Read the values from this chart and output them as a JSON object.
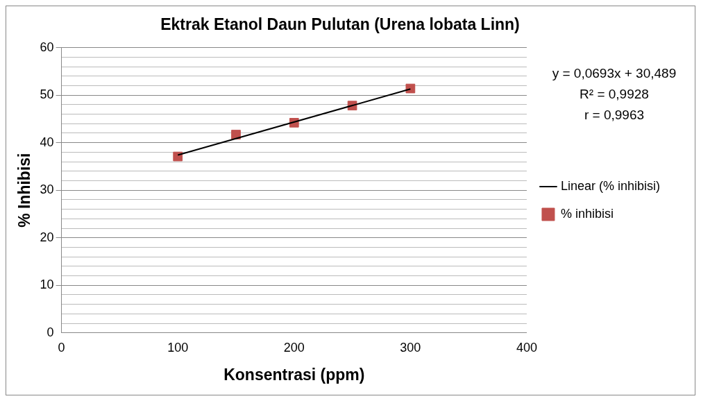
{
  "chart_data": {
    "type": "scatter",
    "title": "Ektrak Etanol Daun Pulutan (Urena lobata Linn)",
    "xlabel": "Konsentrasi (ppm)",
    "ylabel": "% Inhibisi",
    "x": [
      100,
      150,
      200,
      250,
      300
    ],
    "series": [
      {
        "name": "% inhibisi",
        "type": "scatter",
        "color": "#c0504d",
        "values": [
          37.1,
          41.7,
          44.2,
          47.8,
          51.4
        ],
        "marker": "square"
      },
      {
        "name": "Linear (% inhibisi)",
        "type": "line",
        "color": "#000000",
        "x": [
          100,
          300
        ],
        "values": [
          37.4,
          51.3
        ],
        "marker": "none",
        "line_style": "solid"
      }
    ],
    "annotations": [
      "y = 0,0693x + 30,489",
      "R² = 0,9928",
      "r = 0,9963"
    ],
    "xlim": [
      0,
      400
    ],
    "xticks": [
      0,
      100,
      200,
      300,
      400
    ],
    "ylim": [
      0,
      60
    ],
    "yticks": [
      0,
      {
        "value": 2,
        "label": null
      },
      {
        "value": 4,
        "label": null
      },
      {
        "value": 6,
        "label": null
      },
      {
        "value": 8,
        "label": null
      },
      10,
      {
        "value": 12,
        "label": null
      },
      {
        "value": 14,
        "label": null
      },
      {
        "value": 16,
        "label": null
      },
      {
        "value": 18,
        "label": null
      },
      20,
      {
        "value": 22,
        "label": null
      },
      {
        "value": 24,
        "label": null
      },
      {
        "value": 26,
        "label": null
      },
      {
        "value": 28,
        "label": null
      },
      30,
      {
        "value": 32,
        "label": null
      },
      {
        "value": 34,
        "label": null
      },
      {
        "value": 36,
        "label": null
      },
      {
        "value": 38,
        "label": null
      },
      40,
      {
        "value": 42,
        "label": null
      },
      {
        "value": 44,
        "label": null
      },
      {
        "value": 46,
        "label": null
      },
      {
        "value": 48,
        "label": null
      },
      50,
      {
        "value": 52,
        "label": null
      },
      {
        "value": 54,
        "label": null
      },
      {
        "value": 56,
        "label": null
      },
      {
        "value": 58,
        "label": null
      },
      60
    ],
    "grid": "y",
    "legend": "right"
  }
}
